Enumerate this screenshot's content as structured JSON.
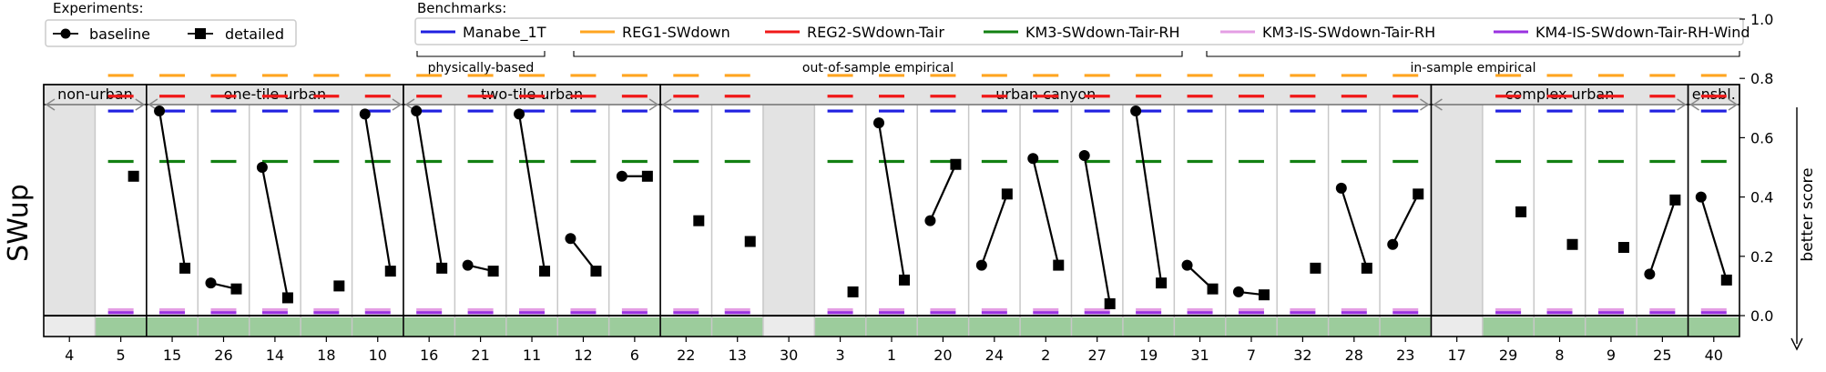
{
  "chart_data": {
    "type": "line",
    "ylabel": "SWup",
    "ylabel_right": "better score",
    "ylim": [
      -0.1,
      1.0
    ],
    "yticks": [
      "0.0",
      "0.2",
      "0.4",
      "0.6",
      "0.8",
      "1.0"
    ],
    "experiments_title": "Experiments:",
    "experiments": [
      {
        "name": "baseline",
        "marker": "circle"
      },
      {
        "name": "detailed",
        "marker": "square"
      }
    ],
    "benchmarks_title": "Benchmarks:",
    "benchmarks": [
      {
        "name": "Manabe_1T",
        "color": "#1f1fe0",
        "value": 0.69
      },
      {
        "name": "REG1-SWdown",
        "color": "#ffa520",
        "value": 0.81
      },
      {
        "name": "REG2-SWdown-Tair",
        "color": "#f01818",
        "value": 0.74
      },
      {
        "name": "KM3-SWdown-Tair-RH",
        "color": "#128012",
        "value": 0.52
      },
      {
        "name": "KM3-IS-SWdown-Tair-RH",
        "color": "#e49ee4",
        "value": 0.02
      },
      {
        "name": "KM4-IS-SWdown-Tair-RH-Wind",
        "color": "#9a32e0",
        "value": 0.01
      }
    ],
    "benchmark_groups": [
      "physically-based",
      "out-of-sample empirical",
      "in-sample empirical"
    ],
    "groups": [
      {
        "label": "non-urban",
        "start": 0,
        "end": 2
      },
      {
        "label": "one-tile urban",
        "start": 2,
        "end": 7
      },
      {
        "label": "two-tile urban",
        "start": 7,
        "end": 12
      },
      {
        "label": "urban canyon",
        "start": 12,
        "end": 27
      },
      {
        "label": "complex urban",
        "start": 27,
        "end": 32
      },
      {
        "label": "ensbl.",
        "start": 32,
        "end": 33
      }
    ],
    "sites": [
      {
        "label": "4",
        "baseline": null,
        "detailed": null,
        "bench": false
      },
      {
        "label": "5",
        "baseline": null,
        "detailed": 0.47,
        "bench": true
      },
      {
        "label": "15",
        "baseline": 0.69,
        "detailed": 0.16,
        "bench": true
      },
      {
        "label": "26",
        "baseline": 0.11,
        "detailed": 0.09,
        "bench": true
      },
      {
        "label": "14",
        "baseline": 0.5,
        "detailed": 0.06,
        "bench": true
      },
      {
        "label": "18",
        "baseline": null,
        "detailed": 0.1,
        "bench": true
      },
      {
        "label": "10",
        "baseline": 0.68,
        "detailed": 0.15,
        "bench": true
      },
      {
        "label": "16",
        "baseline": 0.69,
        "detailed": 0.16,
        "bench": true
      },
      {
        "label": "21",
        "baseline": 0.17,
        "detailed": 0.15,
        "bench": true
      },
      {
        "label": "11",
        "baseline": 0.68,
        "detailed": 0.15,
        "bench": true
      },
      {
        "label": "12",
        "baseline": 0.26,
        "detailed": 0.15,
        "bench": true
      },
      {
        "label": "6",
        "baseline": 0.47,
        "detailed": 0.47,
        "bench": true
      },
      {
        "label": "22",
        "baseline": null,
        "detailed": 0.32,
        "bench": true
      },
      {
        "label": "13",
        "baseline": null,
        "detailed": 0.25,
        "bench": true
      },
      {
        "label": "30",
        "baseline": null,
        "detailed": null,
        "bench": false
      },
      {
        "label": "3",
        "baseline": null,
        "detailed": 0.08,
        "bench": true
      },
      {
        "label": "1",
        "baseline": 0.65,
        "detailed": 0.12,
        "bench": true
      },
      {
        "label": "20",
        "baseline": 0.32,
        "detailed": 0.51,
        "bench": true
      },
      {
        "label": "24",
        "baseline": 0.17,
        "detailed": 0.41,
        "bench": true
      },
      {
        "label": "2",
        "baseline": 0.53,
        "detailed": 0.17,
        "bench": true
      },
      {
        "label": "27",
        "baseline": 0.54,
        "detailed": 0.04,
        "bench": true
      },
      {
        "label": "19",
        "baseline": 0.69,
        "detailed": 0.11,
        "bench": true
      },
      {
        "label": "31",
        "baseline": 0.17,
        "detailed": 0.09,
        "bench": true
      },
      {
        "label": "7",
        "baseline": 0.08,
        "detailed": 0.07,
        "bench": true
      },
      {
        "label": "32",
        "baseline": null,
        "detailed": 0.16,
        "bench": true
      },
      {
        "label": "28",
        "baseline": 0.43,
        "detailed": 0.16,
        "bench": true
      },
      {
        "label": "23",
        "baseline": 0.24,
        "detailed": 0.41,
        "bench": true
      },
      {
        "label": "17",
        "baseline": null,
        "detailed": null,
        "bench": false
      },
      {
        "label": "29",
        "baseline": null,
        "detailed": 0.35,
        "bench": true
      },
      {
        "label": "8",
        "baseline": null,
        "detailed": 0.24,
        "bench": true
      },
      {
        "label": "9",
        "baseline": null,
        "detailed": 0.23,
        "bench": true
      },
      {
        "label": "25",
        "baseline": 0.14,
        "detailed": 0.39,
        "bench": true
      },
      {
        "label": "40",
        "baseline": 0.4,
        "detailed": 0.12,
        "bench": true
      }
    ]
  }
}
